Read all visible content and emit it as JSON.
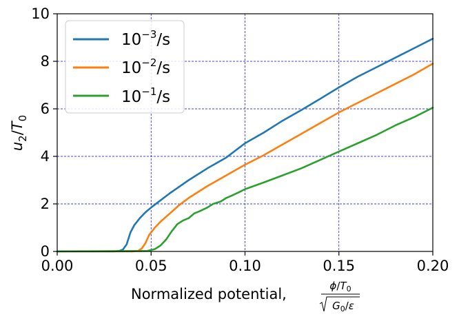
{
  "chart_data": {
    "type": "line",
    "title": "",
    "xlabel": "Normalized potential,",
    "xlabel_fraction": {
      "numerator": {
        "phi": "ϕ",
        "slash": "/",
        "T": "T",
        "sub": "0"
      },
      "denominator": {
        "G": "G",
        "sub": "0",
        "slash": "/",
        "eps": "ε"
      }
    },
    "ylabel": {
      "u": "u",
      "u_sub": "2",
      "slash": "/",
      "T": "T",
      "T_sub": "0"
    },
    "xlim": [
      0.0,
      0.2
    ],
    "ylim": [
      0,
      10
    ],
    "x_ticks": [
      0.0,
      0.05,
      0.1,
      0.15,
      0.2
    ],
    "x_tick_labels": [
      "0.00",
      "0.05",
      "0.10",
      "0.15",
      "0.20"
    ],
    "y_ticks": [
      0,
      2,
      4,
      6,
      8,
      10
    ],
    "y_tick_labels": [
      "0",
      "2",
      "4",
      "6",
      "8",
      "10"
    ],
    "grid": true,
    "grid_style": {
      "color": "#0000ff",
      "dash": "dashed"
    },
    "legend_position": "upper-left",
    "series": [
      {
        "name": "10-3/s",
        "legend": {
          "base": "10",
          "exp": "−3",
          "unit": "/s"
        },
        "color": "#1f77b4",
        "points": [
          [
            0.0,
            0.0
          ],
          [
            0.03,
            0.0
          ],
          [
            0.033,
            0.02
          ],
          [
            0.035,
            0.08
          ],
          [
            0.037,
            0.3
          ],
          [
            0.039,
            0.8
          ],
          [
            0.041,
            1.1
          ],
          [
            0.044,
            1.4
          ],
          [
            0.047,
            1.65
          ],
          [
            0.05,
            1.85
          ],
          [
            0.055,
            2.15
          ],
          [
            0.06,
            2.45
          ],
          [
            0.07,
            3.0
          ],
          [
            0.08,
            3.5
          ],
          [
            0.09,
            3.95
          ],
          [
            0.1,
            4.55
          ],
          [
            0.11,
            5.0
          ],
          [
            0.12,
            5.5
          ],
          [
            0.13,
            5.95
          ],
          [
            0.14,
            6.42
          ],
          [
            0.15,
            6.9
          ],
          [
            0.16,
            7.35
          ],
          [
            0.17,
            7.75
          ],
          [
            0.18,
            8.15
          ],
          [
            0.19,
            8.55
          ],
          [
            0.2,
            8.95
          ]
        ]
      },
      {
        "name": "10-2/s",
        "legend": {
          "base": "10",
          "exp": "−2",
          "unit": "/s"
        },
        "color": "#ff7f0e",
        "points": [
          [
            0.0,
            0.0
          ],
          [
            0.04,
            0.0
          ],
          [
            0.043,
            0.02
          ],
          [
            0.045,
            0.12
          ],
          [
            0.047,
            0.35
          ],
          [
            0.049,
            0.7
          ],
          [
            0.052,
            1.0
          ],
          [
            0.055,
            1.25
          ],
          [
            0.06,
            1.6
          ],
          [
            0.065,
            1.95
          ],
          [
            0.07,
            2.25
          ],
          [
            0.08,
            2.75
          ],
          [
            0.09,
            3.2
          ],
          [
            0.1,
            3.65
          ],
          [
            0.11,
            4.05
          ],
          [
            0.12,
            4.5
          ],
          [
            0.13,
            4.95
          ],
          [
            0.14,
            5.4
          ],
          [
            0.15,
            5.85
          ],
          [
            0.16,
            6.25
          ],
          [
            0.17,
            6.65
          ],
          [
            0.18,
            7.05
          ],
          [
            0.19,
            7.45
          ],
          [
            0.2,
            7.9
          ]
        ]
      },
      {
        "name": "10-1/s",
        "legend": {
          "base": "10",
          "exp": "−1",
          "unit": "/s"
        },
        "color": "#2ca02c",
        "points": [
          [
            0.0,
            0.0
          ],
          [
            0.048,
            0.02
          ],
          [
            0.052,
            0.1
          ],
          [
            0.055,
            0.25
          ],
          [
            0.058,
            0.5
          ],
          [
            0.061,
            0.85
          ],
          [
            0.064,
            1.15
          ],
          [
            0.067,
            1.3
          ],
          [
            0.07,
            1.4
          ],
          [
            0.073,
            1.6
          ],
          [
            0.076,
            1.7
          ],
          [
            0.08,
            1.85
          ],
          [
            0.083,
            2.0
          ],
          [
            0.087,
            2.1
          ],
          [
            0.09,
            2.25
          ],
          [
            0.093,
            2.35
          ],
          [
            0.097,
            2.5
          ],
          [
            0.1,
            2.62
          ],
          [
            0.11,
            2.9
          ],
          [
            0.12,
            3.2
          ],
          [
            0.13,
            3.5
          ],
          [
            0.14,
            3.85
          ],
          [
            0.15,
            4.2
          ],
          [
            0.16,
            4.55
          ],
          [
            0.17,
            4.9
          ],
          [
            0.18,
            5.3
          ],
          [
            0.19,
            5.65
          ],
          [
            0.2,
            6.05
          ]
        ]
      }
    ]
  }
}
